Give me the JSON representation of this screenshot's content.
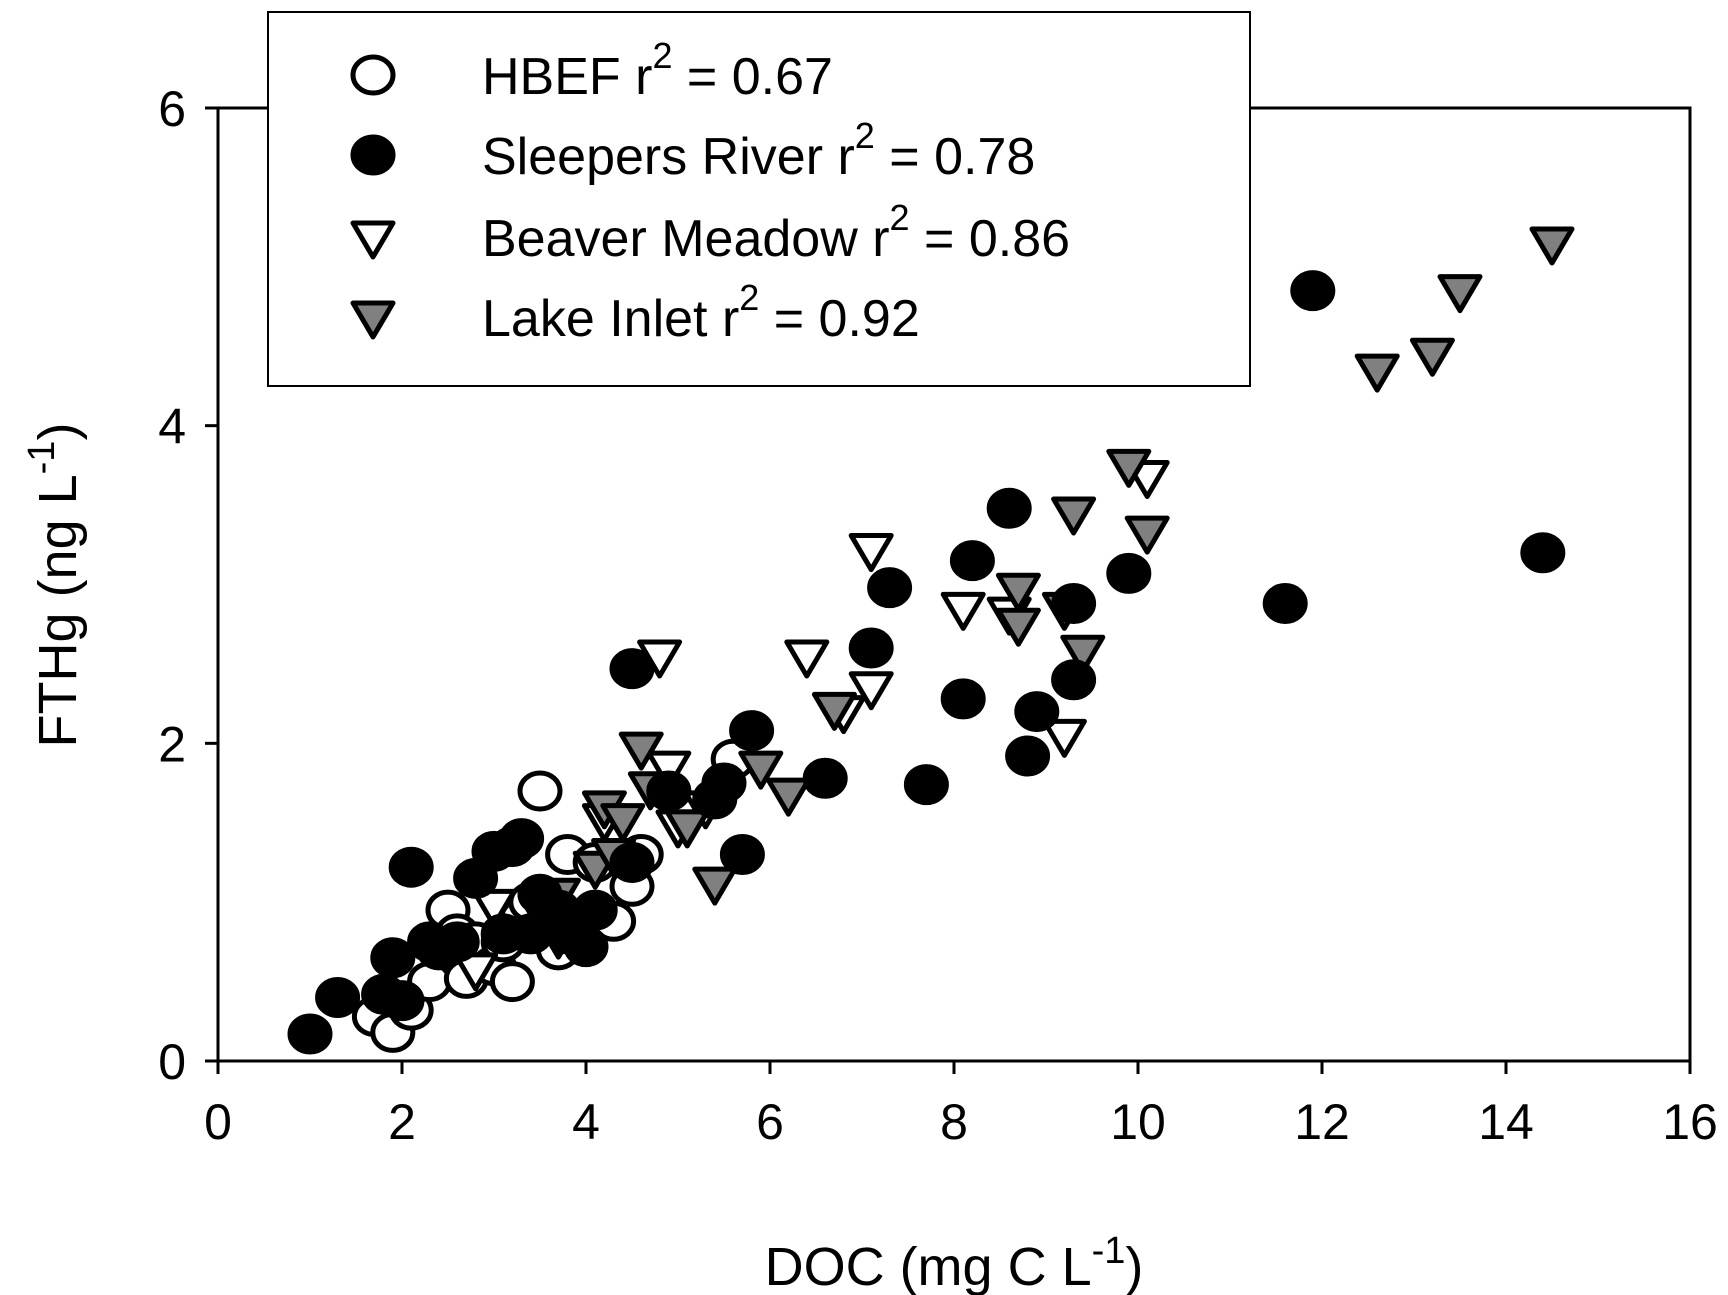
{
  "chart_data": {
    "type": "scatter",
    "xlabel": "DOC (mg C L",
    "xlabel_sup": "-1",
    "xlabel_end": ")",
    "ylabel": "FTHg (ng L",
    "ylabel_sup": "-1",
    "ylabel_end": ")",
    "xlim": [
      0,
      16
    ],
    "ylim": [
      0,
      6
    ],
    "x_ticks": [
      0,
      2,
      4,
      6,
      8,
      10,
      12,
      14,
      16
    ],
    "y_ticks": [
      0,
      2,
      4,
      6
    ],
    "legend_position": "top-left",
    "series": [
      {
        "name": "HBEF r",
        "sup": "2",
        "r2": " = 0.67",
        "marker": "circle-open",
        "fill": "#ffffff",
        "points": [
          [
            1.7,
            0.28
          ],
          [
            1.9,
            0.18
          ],
          [
            2.1,
            0.32
          ],
          [
            2.3,
            0.5
          ],
          [
            2.5,
            0.95
          ],
          [
            2.6,
            0.8
          ],
          [
            2.7,
            0.52
          ],
          [
            2.8,
            0.75
          ],
          [
            3.0,
            0.6
          ],
          [
            3.1,
            0.75
          ],
          [
            3.2,
            0.5
          ],
          [
            3.3,
            0.9
          ],
          [
            3.4,
            1.0
          ],
          [
            3.5,
            1.7
          ],
          [
            3.6,
            0.85
          ],
          [
            3.7,
            0.7
          ],
          [
            3.8,
            1.3
          ],
          [
            3.9,
            0.85
          ],
          [
            4.1,
            1.25
          ],
          [
            4.3,
            0.88
          ],
          [
            4.5,
            1.1
          ],
          [
            4.6,
            1.3
          ],
          [
            5.6,
            1.9
          ]
        ]
      },
      {
        "name": "Sleepers River r",
        "sup": "2",
        "r2": " = 0.78",
        "marker": "circle-filled",
        "fill": "#000000",
        "points": [
          [
            1.0,
            0.17
          ],
          [
            1.3,
            0.4
          ],
          [
            1.8,
            0.42
          ],
          [
            1.9,
            0.65
          ],
          [
            2.0,
            0.38
          ],
          [
            2.1,
            1.22
          ],
          [
            2.3,
            0.75
          ],
          [
            2.4,
            0.7
          ],
          [
            2.6,
            0.75
          ],
          [
            2.8,
            1.15
          ],
          [
            3.0,
            1.32
          ],
          [
            3.1,
            0.8
          ],
          [
            3.2,
            1.35
          ],
          [
            3.3,
            1.4
          ],
          [
            3.4,
            0.8
          ],
          [
            3.5,
            1.05
          ],
          [
            3.7,
            0.95
          ],
          [
            3.8,
            0.8
          ],
          [
            4.0,
            0.72
          ],
          [
            4.1,
            0.95
          ],
          [
            4.5,
            2.47
          ],
          [
            4.5,
            1.25
          ],
          [
            4.9,
            1.7
          ],
          [
            5.4,
            1.65
          ],
          [
            5.5,
            1.75
          ],
          [
            5.7,
            1.3
          ],
          [
            5.8,
            2.08
          ],
          [
            6.6,
            1.78
          ],
          [
            7.1,
            2.6
          ],
          [
            7.3,
            2.98
          ],
          [
            7.7,
            1.74
          ],
          [
            8.1,
            2.28
          ],
          [
            8.2,
            3.15
          ],
          [
            8.6,
            3.48
          ],
          [
            8.8,
            1.92
          ],
          [
            8.9,
            2.2
          ],
          [
            9.3,
            2.88
          ],
          [
            9.3,
            2.4
          ],
          [
            9.9,
            3.07
          ],
          [
            11.6,
            2.88
          ],
          [
            11.9,
            4.85
          ],
          [
            14.4,
            3.2
          ]
        ]
      },
      {
        "name": "Beaver Meadow r",
        "sup": "2",
        "r2": " = 0.86",
        "marker": "triangle-open",
        "fill": "#ffffff",
        "points": [
          [
            2.8,
            0.58
          ],
          [
            3.0,
            0.98
          ],
          [
            3.5,
            0.95
          ],
          [
            3.7,
            0.78
          ],
          [
            4.2,
            1.52
          ],
          [
            4.8,
            2.55
          ],
          [
            4.9,
            1.85
          ],
          [
            5.0,
            1.48
          ],
          [
            5.3,
            1.6
          ],
          [
            6.4,
            2.55
          ],
          [
            6.8,
            2.2
          ],
          [
            7.1,
            3.22
          ],
          [
            7.1,
            2.35
          ],
          [
            8.1,
            2.85
          ],
          [
            8.6,
            2.82
          ],
          [
            9.2,
            2.05
          ],
          [
            10.1,
            3.68
          ]
        ]
      },
      {
        "name": "Lake Inlet r",
        "sup": "2",
        "r2": " = 0.92",
        "marker": "triangle-filled",
        "fill": "#808080",
        "points": [
          [
            3.7,
            1.05
          ],
          [
            4.1,
            1.22
          ],
          [
            4.2,
            1.6
          ],
          [
            4.3,
            1.3
          ],
          [
            4.4,
            1.52
          ],
          [
            4.6,
            1.97
          ],
          [
            4.7,
            1.72
          ],
          [
            5.1,
            1.48
          ],
          [
            5.4,
            1.12
          ],
          [
            5.9,
            1.85
          ],
          [
            6.2,
            1.68
          ],
          [
            6.7,
            2.22
          ],
          [
            8.7,
            2.97
          ],
          [
            8.7,
            2.75
          ],
          [
            9.2,
            2.85
          ],
          [
            9.3,
            3.45
          ],
          [
            9.4,
            2.58
          ],
          [
            9.9,
            3.75
          ],
          [
            10.1,
            3.33
          ],
          [
            12.6,
            4.35
          ],
          [
            13.2,
            4.45
          ],
          [
            13.5,
            4.85
          ],
          [
            14.5,
            5.15
          ]
        ]
      }
    ]
  }
}
